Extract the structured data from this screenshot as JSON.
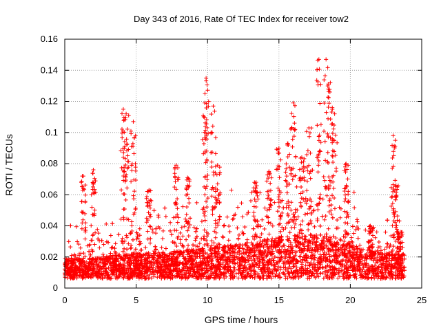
{
  "chart_data": {
    "type": "scatter",
    "title": "Day 343 of 2016, Rate Of TEC Index for receiver tow2",
    "xlabel": "GPS time / hours",
    "ylabel": "ROTI / TECUs",
    "xlim": [
      0,
      25
    ],
    "ylim": [
      0,
      0.16
    ],
    "x_ticks": [
      0,
      5,
      10,
      15,
      20,
      25
    ],
    "y_ticks": [
      0,
      0.02,
      0.04,
      0.06,
      0.08,
      0.1,
      0.12,
      0.14,
      0.16
    ],
    "x_tick_labels": [
      "0",
      "5",
      "10",
      "15",
      "20",
      "25"
    ],
    "y_tick_labels": [
      "0",
      "0.02",
      "0.04",
      "0.06",
      "0.08",
      "0.1",
      "0.12",
      "0.14",
      "0.16"
    ],
    "grid": true,
    "marker": "+",
    "series_color": "#ff0000",
    "x_range_of_data": [
      0,
      23.8
    ],
    "baseline": [
      [
        0.0,
        0.012
      ],
      [
        2.0,
        0.013
      ],
      [
        4.0,
        0.015
      ],
      [
        6.0,
        0.016
      ],
      [
        8.0,
        0.017
      ],
      [
        10.0,
        0.019
      ],
      [
        12.0,
        0.021
      ],
      [
        14.0,
        0.024
      ],
      [
        16.0,
        0.027
      ],
      [
        18.0,
        0.027
      ],
      [
        19.5,
        0.024
      ],
      [
        20.5,
        0.019
      ],
      [
        22.0,
        0.016
      ],
      [
        23.8,
        0.015
      ]
    ],
    "peaks": [
      {
        "x": 1.3,
        "y": 0.072
      },
      {
        "x": 2.0,
        "y": 0.076
      },
      {
        "x": 4.1,
        "y": 0.115
      },
      {
        "x": 4.3,
        "y": 0.112
      },
      {
        "x": 4.8,
        "y": 0.107
      },
      {
        "x": 5.9,
        "y": 0.063
      },
      {
        "x": 7.8,
        "y": 0.079
      },
      {
        "x": 8.6,
        "y": 0.071
      },
      {
        "x": 9.8,
        "y": 0.119
      },
      {
        "x": 9.9,
        "y": 0.135
      },
      {
        "x": 10.4,
        "y": 0.117
      },
      {
        "x": 10.7,
        "y": 0.079
      },
      {
        "x": 13.4,
        "y": 0.068
      },
      {
        "x": 14.3,
        "y": 0.075
      },
      {
        "x": 15.0,
        "y": 0.09
      },
      {
        "x": 15.6,
        "y": 0.093
      },
      {
        "x": 16.0,
        "y": 0.119
      },
      {
        "x": 16.6,
        "y": 0.084
      },
      {
        "x": 17.1,
        "y": 0.103
      },
      {
        "x": 17.8,
        "y": 0.147
      },
      {
        "x": 18.3,
        "y": 0.147
      },
      {
        "x": 18.6,
        "y": 0.132
      },
      {
        "x": 18.9,
        "y": 0.112
      },
      {
        "x": 19.7,
        "y": 0.08
      },
      {
        "x": 21.4,
        "y": 0.04
      },
      {
        "x": 23.0,
        "y": 0.098
      },
      {
        "x": 23.2,
        "y": 0.066
      },
      {
        "x": 23.5,
        "y": 0.036
      }
    ]
  }
}
